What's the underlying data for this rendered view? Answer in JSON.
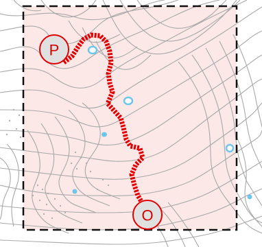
{
  "map": {
    "type": "topographic-route-map",
    "colors": {
      "background": "#ffffff",
      "contour": "#a8a8a8",
      "area_fill": "#fde8e8",
      "frame": "#111111",
      "route": "#e00000",
      "marker_fill": "#e0e0e0",
      "marker_stroke": "#e00000",
      "water": "#6ec6e8"
    },
    "markers": {
      "start": {
        "label": "P",
        "icon": "start-marker"
      },
      "end": {
        "label": "O",
        "icon": "end-marker"
      }
    },
    "icons": [
      "pond-icon",
      "route-line",
      "frame-dashed-border"
    ]
  }
}
